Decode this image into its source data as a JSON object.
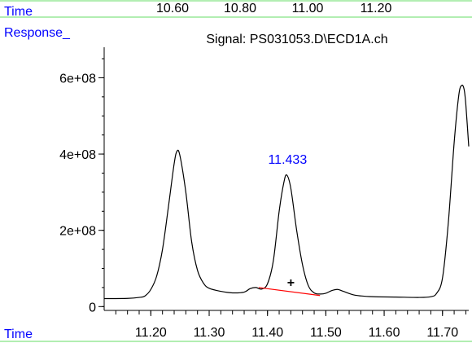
{
  "colors": {
    "frame": "#66dd66",
    "label": "#0000ff",
    "trace": "#000000",
    "baseline": "#ff0000",
    "axis": "#000000"
  },
  "header": {
    "time_label": "Time",
    "response_label": "Response_",
    "signal_title": "Signal: PS031053.D\\ECD1A.ch"
  },
  "footer": {
    "time_label": "Time"
  },
  "chart_data": {
    "type": "line",
    "title": "Signal: PS031053.D\\ECD1A.ch",
    "xlabel": "Time",
    "ylabel": "Response_",
    "xlim": [
      11.12,
      11.745
    ],
    "ylim": [
      -10000000,
      680000000
    ],
    "grid": false,
    "x_ticks": [
      11.2,
      11.3,
      11.4,
      11.5,
      11.6,
      11.7
    ],
    "x_tick_labels": [
      "11.20",
      "11.30",
      "11.40",
      "11.50",
      "11.60",
      "11.70"
    ],
    "x_minor_step": 0.02,
    "y_ticks": [
      0,
      200000000,
      400000000,
      600000000
    ],
    "y_tick_labels": [
      "0",
      "2e+08",
      "4e+08",
      "6e+08"
    ],
    "y_minor_step": 50000000,
    "top_axis_tick_labels": [
      "10.60",
      "10.80",
      "11.00",
      "11.20"
    ],
    "series": [
      {
        "points": [
          [
            11.12,
            21000000
          ],
          [
            11.16,
            21500000
          ],
          [
            11.18,
            24000000
          ],
          [
            11.19,
            28000000
          ],
          [
            11.2,
            45000000
          ],
          [
            11.21,
            80000000
          ],
          [
            11.22,
            150000000
          ],
          [
            11.23,
            260000000
          ],
          [
            11.24,
            375000000
          ],
          [
            11.245,
            408000000
          ],
          [
            11.25,
            395000000
          ],
          [
            11.26,
            300000000
          ],
          [
            11.27,
            170000000
          ],
          [
            11.28,
            95000000
          ],
          [
            11.29,
            62000000
          ],
          [
            11.3,
            48000000
          ],
          [
            11.32,
            40000000
          ],
          [
            11.34,
            36000000
          ],
          [
            11.36,
            38000000
          ],
          [
            11.37,
            47000000
          ],
          [
            11.38,
            50000000
          ],
          [
            11.39,
            46000000
          ],
          [
            11.4,
            60000000
          ],
          [
            11.41,
            120000000
          ],
          [
            11.42,
            250000000
          ],
          [
            11.428,
            325000000
          ],
          [
            11.433,
            345000000
          ],
          [
            11.44,
            310000000
          ],
          [
            11.45,
            200000000
          ],
          [
            11.46,
            110000000
          ],
          [
            11.47,
            55000000
          ],
          [
            11.48,
            36000000
          ],
          [
            11.49,
            33000000
          ],
          [
            11.5,
            35000000
          ],
          [
            11.51,
            42000000
          ],
          [
            11.52,
            45000000
          ],
          [
            11.53,
            40000000
          ],
          [
            11.55,
            30000000
          ],
          [
            11.58,
            26000000
          ],
          [
            11.62,
            25000000
          ],
          [
            11.66,
            24000000
          ],
          [
            11.68,
            26000000
          ],
          [
            11.69,
            35000000
          ],
          [
            11.7,
            75000000
          ],
          [
            11.71,
            220000000
          ],
          [
            11.72,
            430000000
          ],
          [
            11.728,
            555000000
          ],
          [
            11.733,
            580000000
          ],
          [
            11.737,
            570000000
          ],
          [
            11.74,
            530000000
          ],
          [
            11.745,
            420000000
          ]
        ]
      }
    ],
    "baseline_segment": [
      [
        11.385,
        50000000
      ],
      [
        11.49,
        29000000
      ]
    ],
    "peak_annotation": {
      "label": "11.433",
      "x": 11.433,
      "y": 345000000
    },
    "marker": {
      "symbol": "+",
      "x": 11.44,
      "y": 65000000
    }
  }
}
